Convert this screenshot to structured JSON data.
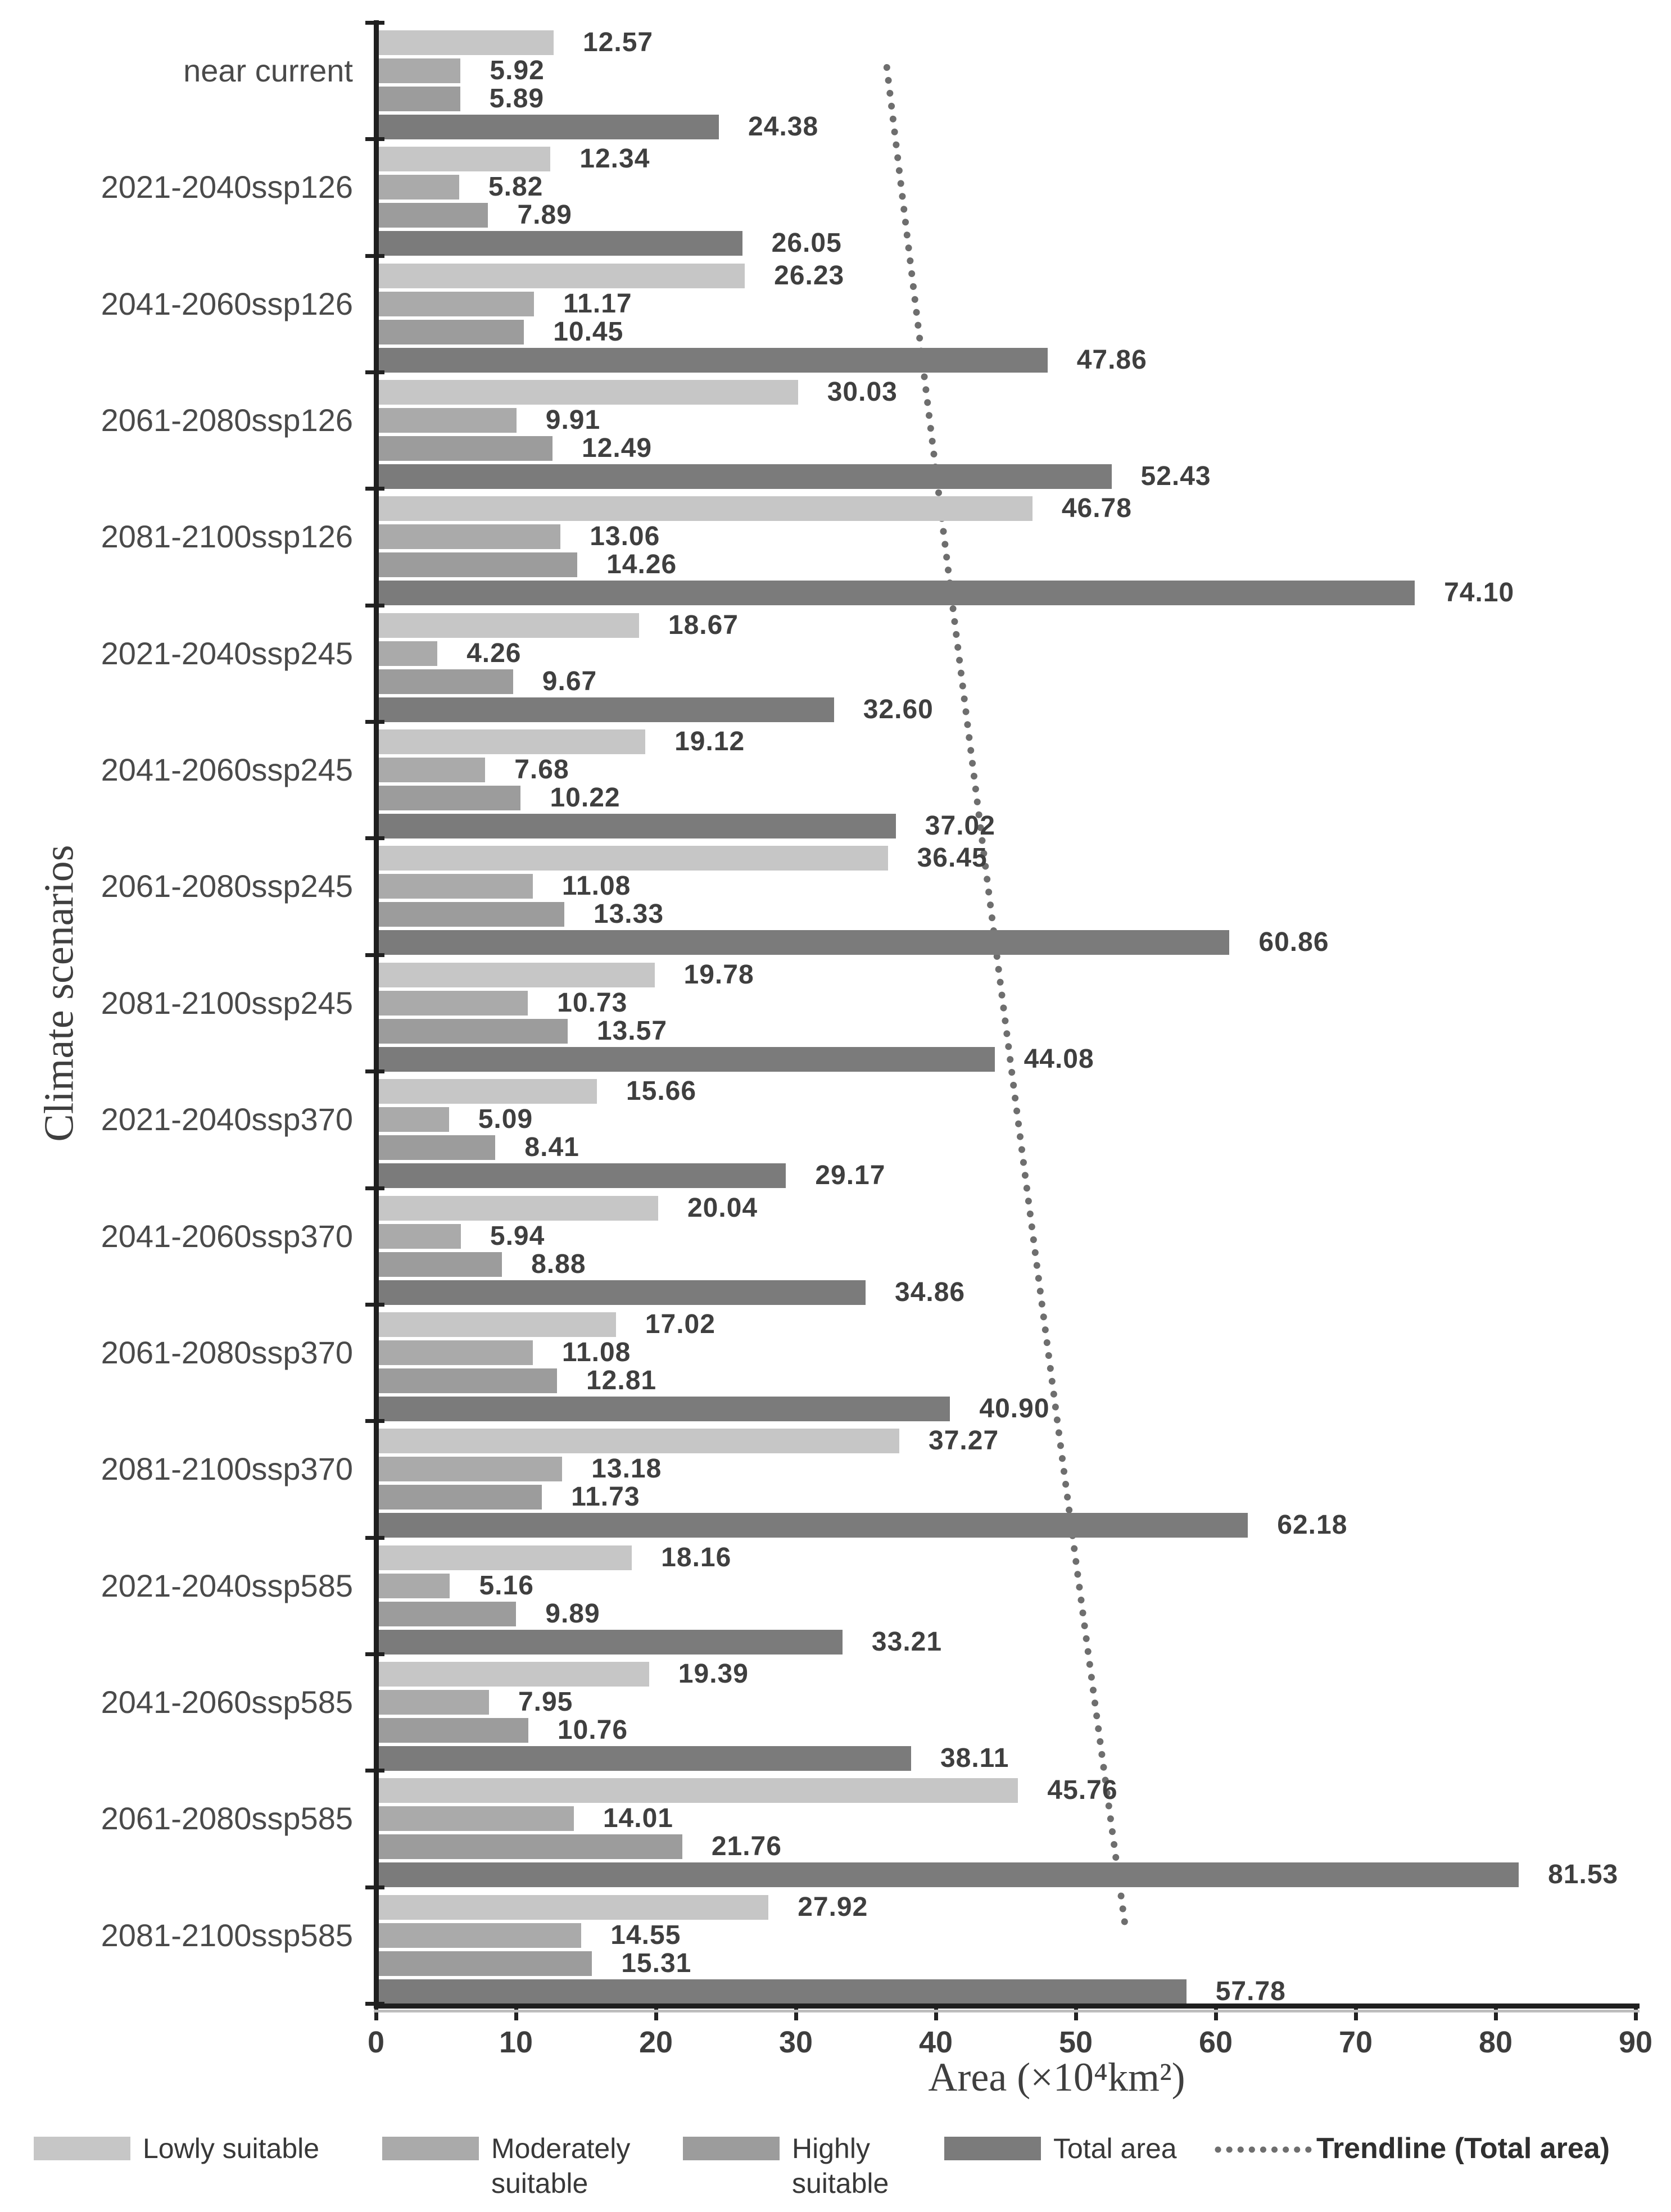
{
  "chart_data": {
    "type": "bar",
    "orientation": "horizontal",
    "title": "",
    "xlabel": "Area (×10⁴km²)",
    "ylabel": "Climate scenarios",
    "xlim": [
      0,
      90
    ],
    "x_ticks": [
      0,
      10,
      20,
      30,
      40,
      50,
      60,
      70,
      80,
      90
    ],
    "grid": false,
    "value_labels": true,
    "legend_position": "bottom",
    "categories": [
      "near current",
      "2021-2040ssp126",
      "2041-2060ssp126",
      "2061-2080ssp126",
      "2081-2100ssp126",
      "2021-2040ssp245",
      "2041-2060ssp245",
      "2061-2080ssp245",
      "2081-2100ssp245",
      "2021-2040ssp370",
      "2041-2060ssp370",
      "2061-2080ssp370",
      "2081-2100ssp370",
      "2021-2040ssp585",
      "2041-2060ssp585",
      "2061-2080ssp585",
      "2081-2100ssp585"
    ],
    "series": [
      {
        "name": "Lowly suitable",
        "color": "#c6c6c6",
        "values": [
          12.57,
          12.34,
          26.23,
          30.03,
          46.78,
          18.67,
          19.12,
          36.45,
          19.78,
          15.66,
          20.04,
          17.02,
          37.27,
          18.16,
          19.39,
          45.76,
          27.92
        ]
      },
      {
        "name": "Moderately suitable",
        "color": "#aaaaaa",
        "values": [
          5.92,
          5.82,
          11.17,
          9.91,
          13.06,
          4.26,
          7.68,
          11.08,
          10.73,
          5.09,
          5.94,
          11.08,
          13.18,
          5.16,
          7.95,
          14.01,
          14.55
        ]
      },
      {
        "name": "Highly suitable",
        "color": "#9c9c9c",
        "values": [
          5.89,
          7.89,
          10.45,
          12.49,
          14.26,
          9.67,
          10.22,
          13.33,
          13.57,
          8.41,
          8.88,
          12.81,
          11.73,
          9.89,
          10.76,
          21.76,
          15.31
        ]
      },
      {
        "name": "Total area",
        "color": "#7b7b7b",
        "values": [
          24.38,
          26.05,
          47.86,
          52.43,
          74.1,
          32.6,
          37.02,
          60.86,
          44.08,
          29.17,
          34.86,
          40.9,
          62.18,
          33.21,
          38.11,
          81.53,
          57.78
        ]
      }
    ],
    "trendline": {
      "name": "Trendline (Total area)",
      "of_series": "Total area",
      "style": "dotted",
      "color": "#6e6e6e",
      "start_value": 36.5,
      "end_value": 53.6
    }
  },
  "legend": {
    "items": [
      {
        "line1": "Lowly suitable",
        "line2": ""
      },
      {
        "line1": "Moderately",
        "line2": "suitable"
      },
      {
        "line1": "Highly",
        "line2": "suitable"
      },
      {
        "line1": "Total area",
        "line2": ""
      }
    ],
    "trendline_label": "Trendline (Total area)"
  }
}
